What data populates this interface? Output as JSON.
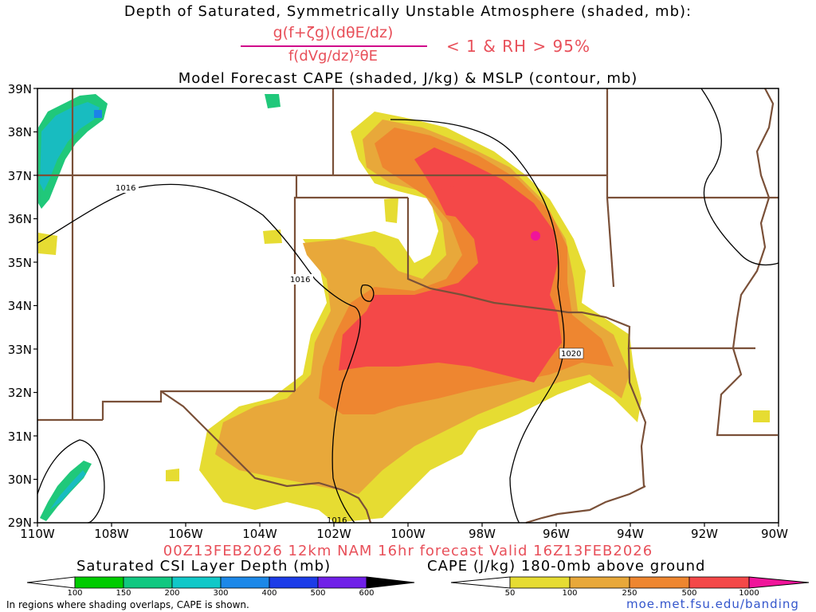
{
  "titles": {
    "line1": "Depth of Saturated, Symmetrically Unstable Atmosphere (shaded, mb):",
    "formula_numerator": "g(f+ζg)(dθE/dz)",
    "formula_denominator": "f(dVg/dz)²θE",
    "formula_condition": "< 1 & RH > 95%",
    "line2": "Model Forecast CAPE (shaded, J/kg) & MSLP (contour, mb)",
    "valid": "00Z13FEB2026 12km NAM 16hr forecast Valid 16Z13FEB2026"
  },
  "map": {
    "lat_labels": [
      "39N",
      "38N",
      "37N",
      "36N",
      "35N",
      "34N",
      "33N",
      "32N",
      "31N",
      "30N",
      "29N"
    ],
    "lon_labels": [
      "110W",
      "108W",
      "106W",
      "104W",
      "102W",
      "100W",
      "98W",
      "96W",
      "94W",
      "92W",
      "90W"
    ],
    "isobar_labels": [
      "1016",
      "1016",
      "1020",
      "1016"
    ],
    "colors": {
      "cape_50": "#e6dc32",
      "cape_100": "#e8a83a",
      "cape_250": "#ee8630",
      "cape_500": "#f44848",
      "cape_1000": "#f0149a",
      "csi_150": "#20c87a",
      "csi_200": "#18bcc0",
      "csi_300": "#1c82e8",
      "border": "#7a5038"
    }
  },
  "legend": {
    "csi_title": "Saturated CSI Layer Depth (mb)",
    "csi_ticks": [
      "100",
      "150",
      "200",
      "300",
      "400",
      "500",
      "600"
    ],
    "csi_colors": [
      "#00cc00",
      "#10c880",
      "#10c8c8",
      "#1c88e8",
      "#1c3ce8",
      "#7020e8",
      "#000000"
    ],
    "cape_title": "CAPE (J/kg) 180-0mb above ground",
    "cape_ticks": [
      "50",
      "100",
      "250",
      "500",
      "1000"
    ],
    "cape_colors": [
      "#e6dc32",
      "#e8a83a",
      "#ee8630",
      "#f44848",
      "#f0149a"
    ],
    "footnote": "In regions where shading overlaps, CAPE is shown.",
    "credit": "moe.met.fsu.edu/banding"
  }
}
